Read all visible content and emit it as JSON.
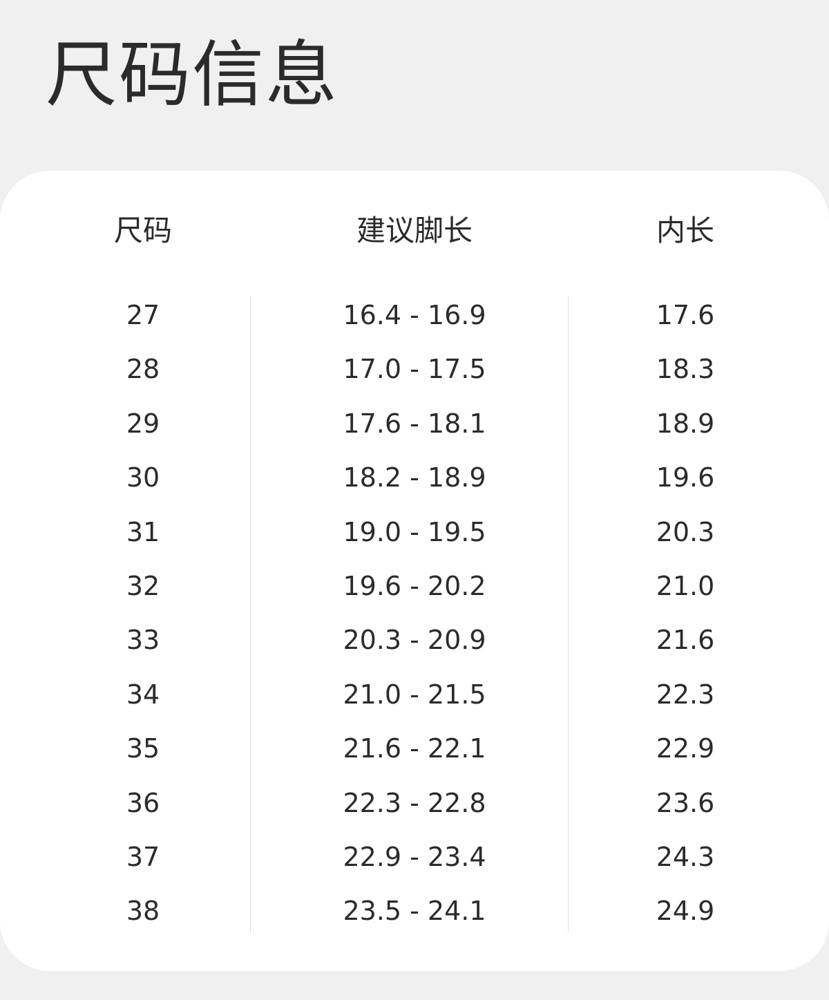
{
  "title": "尺码信息",
  "table": {
    "headers": [
      "尺码",
      "建议脚长",
      "内长"
    ],
    "rows": [
      [
        "27",
        "16.4 - 16.9",
        "17.6"
      ],
      [
        "28",
        "17.0 - 17.5",
        "18.3"
      ],
      [
        "29",
        "17.6 - 18.1",
        "18.9"
      ],
      [
        "30",
        "18.2 - 18.9",
        "19.6"
      ],
      [
        "31",
        "19.0 - 19.5",
        "20.3"
      ],
      [
        "32",
        "19.6 - 20.2",
        "21.0"
      ],
      [
        "33",
        "20.3 - 20.9",
        "21.6"
      ],
      [
        "34",
        "21.0 - 21.5",
        "22.3"
      ],
      [
        "35",
        "21.6 - 22.1",
        "22.9"
      ],
      [
        "36",
        "22.3 - 22.8",
        "23.6"
      ],
      [
        "37",
        "22.9 - 23.4",
        "24.3"
      ],
      [
        "38",
        "23.5 - 24.1",
        "24.9"
      ]
    ]
  },
  "colors": {
    "background": "#f0f0f0",
    "card": "#ffffff",
    "text": "#2b2b2b",
    "divider": "#e2e2e2"
  }
}
